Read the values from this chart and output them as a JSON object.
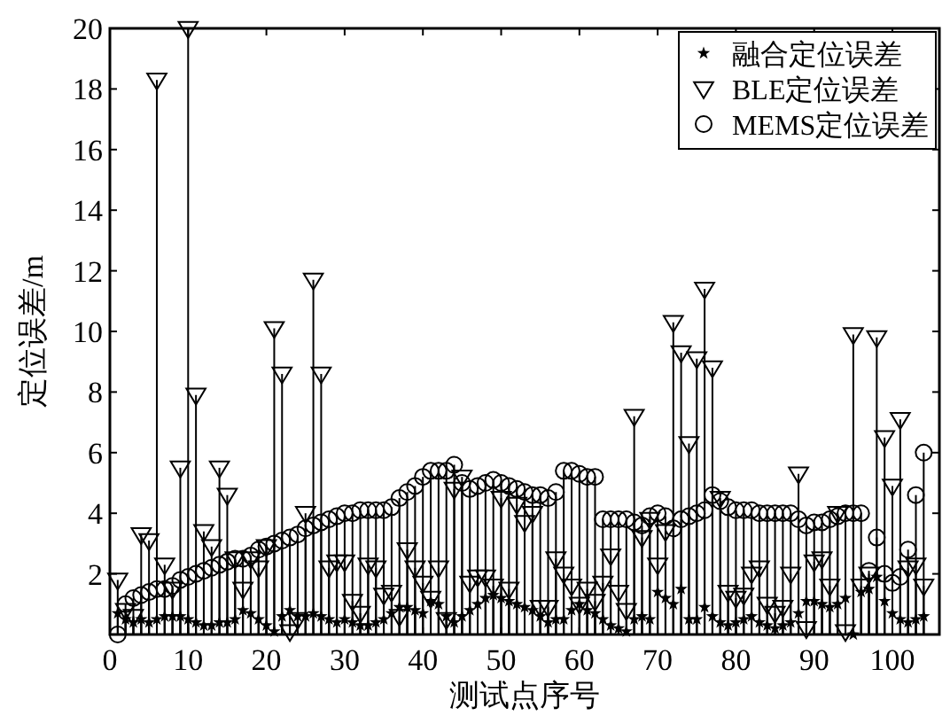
{
  "chart_data": {
    "type": "lollipop",
    "xlabel": "测试点序号",
    "ylabel": "定位误差/m",
    "x": [
      1,
      2,
      3,
      4,
      5,
      6,
      7,
      8,
      9,
      10,
      11,
      12,
      13,
      14,
      15,
      16,
      17,
      18,
      19,
      20,
      21,
      22,
      23,
      24,
      25,
      26,
      27,
      28,
      29,
      30,
      31,
      32,
      33,
      34,
      35,
      36,
      37,
      38,
      39,
      40,
      41,
      42,
      43,
      44,
      45,
      46,
      47,
      48,
      49,
      50,
      51,
      52,
      53,
      54,
      55,
      56,
      57,
      58,
      59,
      60,
      61,
      62,
      63,
      64,
      65,
      66,
      67,
      68,
      69,
      70,
      71,
      72,
      73,
      74,
      75,
      76,
      77,
      78,
      79,
      80,
      81,
      82,
      83,
      84,
      85,
      86,
      87,
      88,
      89,
      90,
      91,
      92,
      93,
      94,
      95,
      96,
      97,
      98,
      99,
      100,
      101,
      102,
      103,
      104
    ],
    "xlim": [
      0,
      106
    ],
    "ylim": [
      0,
      20
    ],
    "xticks": [
      0,
      10,
      20,
      30,
      40,
      50,
      60,
      70,
      80,
      90,
      100
    ],
    "yticks": [
      {
        "value": 0,
        "label": null
      },
      2,
      4,
      6,
      8,
      10,
      12,
      14,
      16,
      18,
      20
    ],
    "legend": "top right",
    "series": [
      {
        "name": "融合定位误差",
        "color": "#000000",
        "marker": "star",
        "values": [
          0.7,
          0.5,
          0.4,
          0.5,
          0.4,
          0.5,
          0.6,
          0.6,
          0.6,
          0.5,
          0.4,
          0.3,
          0.3,
          0.4,
          0.4,
          0.5,
          0.8,
          0.7,
          0.5,
          0.3,
          0.1,
          0.6,
          0.8,
          0.6,
          0.6,
          0.7,
          0.6,
          0.5,
          0.4,
          0.5,
          0.4,
          0.3,
          0.3,
          0.4,
          0.5,
          0.7,
          0.9,
          0.9,
          0.8,
          0.7,
          1.1,
          1.0,
          0.6,
          0.4,
          0.6,
          0.8,
          1.0,
          1.2,
          1.3,
          1.2,
          1.1,
          1.0,
          0.9,
          0.8,
          0.6,
          0.4,
          0.5,
          0.5,
          0.8,
          1.0,
          0.8,
          0.7,
          0.5,
          0.3,
          0.2,
          0.1,
          0.5,
          0.6,
          0.5,
          1.4,
          1.2,
          1.0,
          1.5,
          0.5,
          0.5,
          0.9,
          0.6,
          0.4,
          0.3,
          0.4,
          0.5,
          0.6,
          0.4,
          0.3,
          0.2,
          0.3,
          0.4,
          0.7,
          1.1,
          1.1,
          1.0,
          0.9,
          1.0,
          1.2,
          0.0,
          1.4,
          1.5,
          1.9,
          1.1,
          0.7,
          0.5,
          0.4,
          0.5,
          0.6
        ]
      },
      {
        "name": "BLE定位误差",
        "color": "#000000",
        "marker": "triangle",
        "values": [
          1.8,
          0.8,
          0.6,
          3.3,
          3.1,
          18.3,
          2.3,
          1.5,
          5.5,
          20,
          7.9,
          3.4,
          2.9,
          5.5,
          4.6,
          2.5,
          1.5,
          2.5,
          2.2,
          2.9,
          10.1,
          8.6,
          0.1,
          0.5,
          4.0,
          11.7,
          8.6,
          2.2,
          2.4,
          2.4,
          1.1,
          0.7,
          2.3,
          2.2,
          1.3,
          1.4,
          0.6,
          2.8,
          2.2,
          1.7,
          1.2,
          2.2,
          0.5,
          4.8,
          5.2,
          1.7,
          1.9,
          1.9,
          1.6,
          4.5,
          1.5,
          4.3,
          3.7,
          4.0,
          0.9,
          0.9,
          2.5,
          2.0,
          1.6,
          1.0,
          1.5,
          1.1,
          1.7,
          2.6,
          1.4,
          0.8,
          7.2,
          3.2,
          3.8,
          2.3,
          3.4,
          10.3,
          9.3,
          6.3,
          9.1,
          11.4,
          8.8,
          4.5,
          1.4,
          1.2,
          1.3,
          2.0,
          2.2,
          1.0,
          0.7,
          0.9,
          2.0,
          5.3,
          0.2,
          2.4,
          2.5,
          1.6,
          4.0,
          0.1,
          9.9,
          1.6,
          2.0,
          9.8,
          6.5,
          4.9,
          7.1,
          2.2,
          2.3,
          1.6
        ]
      },
      {
        "name": "MEMS定位误差",
        "color": "#000000",
        "marker": "circle",
        "values": [
          0.0,
          1.0,
          1.2,
          1.3,
          1.4,
          1.5,
          1.5,
          1.6,
          1.8,
          1.9,
          2.0,
          2.1,
          2.2,
          2.3,
          2.4,
          2.5,
          2.5,
          2.6,
          2.8,
          2.9,
          3.0,
          3.1,
          3.2,
          3.3,
          3.5,
          3.6,
          3.7,
          3.8,
          3.9,
          4.0,
          4.0,
          4.1,
          4.1,
          4.1,
          4.1,
          4.2,
          4.5,
          4.7,
          4.9,
          5.2,
          5.4,
          5.4,
          5.4,
          5.6,
          5.0,
          4.8,
          4.9,
          5.0,
          5.1,
          5.0,
          4.9,
          4.8,
          4.7,
          4.6,
          4.6,
          4.5,
          4.7,
          5.4,
          5.4,
          5.3,
          5.2,
          5.2,
          3.8,
          3.8,
          3.8,
          3.8,
          3.7,
          3.6,
          3.9,
          4.0,
          3.9,
          3.5,
          3.8,
          3.9,
          4.0,
          4.1,
          4.6,
          4.4,
          4.2,
          4.1,
          4.1,
          4.1,
          4.0,
          4.0,
          4.0,
          4.0,
          4.0,
          3.8,
          3.6,
          3.7,
          3.7,
          3.8,
          3.9,
          4.0,
          4.0,
          4.0,
          2.1,
          3.2,
          2.0,
          1.7,
          1.9,
          2.8,
          4.6,
          6.0
        ]
      }
    ]
  }
}
